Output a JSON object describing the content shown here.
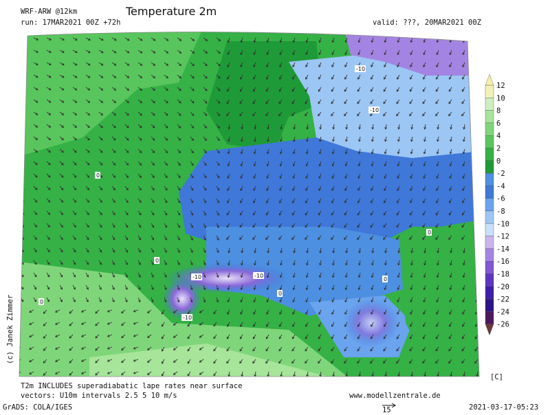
{
  "header": {
    "model": "WRF-ARW @12km",
    "run": "run: 17MAR2021 00Z +72h",
    "title": "Temperature 2m",
    "valid": "valid: ???, 20MAR2021 00Z"
  },
  "colorbar": {
    "labels": [
      12,
      10,
      8,
      6,
      4,
      2,
      0,
      -2,
      -4,
      -6,
      -8,
      -10,
      -12,
      -14,
      -16,
      -18,
      -20,
      -22,
      -24,
      -26
    ],
    "colors": [
      "#f2f2b8",
      "#cfeec0",
      "#a6e59a",
      "#7fd67a",
      "#58c65c",
      "#35b146",
      "#1f9a38",
      "#4d8fe0",
      "#3f78d8",
      "#6aa3ee",
      "#9cc6f4",
      "#c8e0fa",
      "#c9b4ee",
      "#a484e2",
      "#8058d2",
      "#5d36c0",
      "#3f1fa8",
      "#2c1488",
      "#4a1a5c"
    ],
    "top_color": "#f4f0a8",
    "bottom_color": "#6a3a3a",
    "unit": "[C]"
  },
  "map": {
    "contour_labels": [
      "-10",
      "-10",
      "-10",
      "-10",
      "-10",
      "0",
      "0",
      "0",
      "0",
      "0",
      "0"
    ]
  },
  "credit": "(c) Janek Zimmer",
  "footer": {
    "note": "T2m INCLUDES superadiabatic lape rates near surface",
    "vectors": "vectors: U10m intervals 2.5 5 10 m/s",
    "website": "www.modellzentrale.de",
    "software": "GrADS: COLA/IGES",
    "timestamp": "2021-03-17-05:23",
    "vector_scale": "15"
  }
}
